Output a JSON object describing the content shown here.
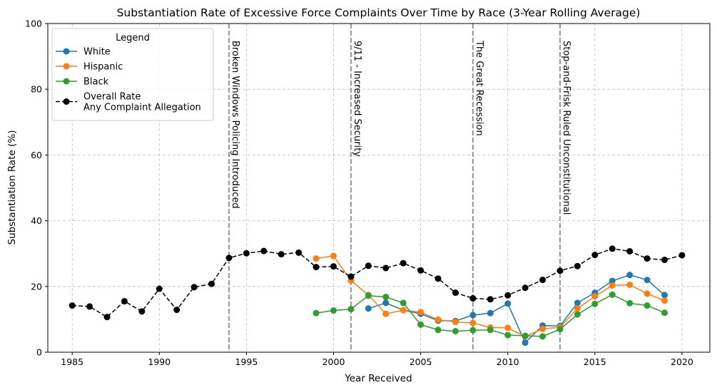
{
  "chart_data": {
    "type": "line",
    "title": "Substantiation Rate of Excessive Force Complaints Over Time by Race (3-Year Rolling Average)",
    "xlabel": "Year Received",
    "ylabel": "Substantiation Rate (%)",
    "xlim": [
      1983.6,
      2021.6
    ],
    "ylim": [
      0,
      100
    ],
    "x_ticks": [
      1985,
      1990,
      1995,
      2000,
      2005,
      2010,
      2015,
      2020
    ],
    "y_ticks": [
      0,
      20,
      40,
      60,
      80,
      100
    ],
    "grid": true,
    "legend": {
      "title": "Legend",
      "placement": "top-left"
    },
    "series": [
      {
        "name": "White",
        "color": "#1f77b4",
        "style": "solid",
        "x": [
          2002,
          2003,
          2004,
          2005,
          2006,
          2007,
          2008,
          2009,
          2010,
          2011,
          2012,
          2013,
          2014,
          2015,
          2016,
          2017,
          2018,
          2019
        ],
        "y": [
          13.3,
          15.0,
          12.8,
          11.7,
          9.6,
          9.5,
          11.3,
          11.9,
          14.8,
          2.9,
          8.1,
          8.0,
          15.0,
          18.1,
          21.7,
          23.5,
          22.0,
          17.4
        ]
      },
      {
        "name": "Hispanic",
        "color": "#ff7f0e",
        "style": "solid",
        "x": [
          1999,
          2000,
          2001,
          2002,
          2003,
          2004,
          2005,
          2006,
          2007,
          2008,
          2009,
          2010,
          2011,
          2012,
          2013,
          2014,
          2015,
          2016,
          2017,
          2018,
          2019
        ],
        "y": [
          28.5,
          29.3,
          21.8,
          17.4,
          11.7,
          12.8,
          12.2,
          9.9,
          9.2,
          8.9,
          7.5,
          7.4,
          4.8,
          7.1,
          7.6,
          13.3,
          17.0,
          20.3,
          20.5,
          17.8,
          15.7
        ]
      },
      {
        "name": "Black",
        "color": "#2ca02c",
        "style": "solid",
        "x": [
          1999,
          2000,
          2001,
          2002,
          2003,
          2004,
          2005,
          2006,
          2007,
          2008,
          2009,
          2010,
          2011,
          2012,
          2013,
          2014,
          2015,
          2016,
          2017,
          2018,
          2019
        ],
        "y": [
          11.9,
          12.7,
          13.1,
          17.2,
          16.8,
          15.0,
          8.4,
          6.8,
          6.4,
          6.7,
          6.8,
          5.2,
          5.0,
          4.8,
          7.0,
          11.5,
          14.7,
          17.5,
          14.9,
          14.2,
          12.0
        ]
      },
      {
        "name": "Overall Rate\nAny Complaint Allegation",
        "color": "#000000",
        "style": "dashed",
        "x": [
          1985,
          1986,
          1987,
          1988,
          1989,
          1990,
          1991,
          1992,
          1993,
          1994,
          1995,
          1996,
          1997,
          1998,
          1999,
          2000,
          2001,
          2002,
          2003,
          2004,
          2005,
          2006,
          2007,
          2008,
          2009,
          2010,
          2011,
          2012,
          2013,
          2014,
          2015,
          2016,
          2017,
          2018,
          2019,
          2020
        ],
        "y": [
          14.2,
          13.9,
          10.7,
          15.5,
          12.4,
          19.3,
          12.9,
          19.8,
          20.8,
          28.7,
          30.1,
          30.8,
          29.8,
          30.3,
          25.9,
          26.1,
          23.0,
          26.3,
          25.6,
          27.1,
          24.9,
          22.4,
          18.1,
          16.4,
          16.1,
          17.3,
          19.6,
          22.0,
          24.8,
          26.2,
          29.6,
          31.5,
          30.7,
          28.5,
          28.1,
          29.5
        ]
      }
    ],
    "annotations": [
      {
        "x": 1994,
        "text": "Broken Windows Policing Introduced"
      },
      {
        "x": 2001,
        "text": "9/11 - Increased Security"
      },
      {
        "x": 2008,
        "text": "The Great Recession"
      },
      {
        "x": 2013,
        "text": "Stop-and-Frisk Ruled Unconstitutional"
      }
    ]
  }
}
